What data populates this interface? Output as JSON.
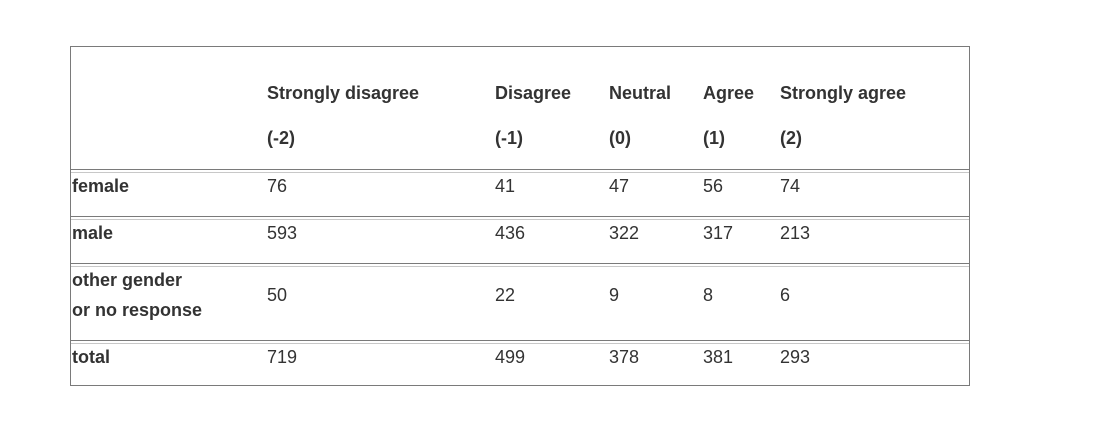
{
  "table": {
    "columns": [
      {
        "label": "Strongly disagree",
        "code": "(-2)"
      },
      {
        "label": "Disagree",
        "code": "(-1)"
      },
      {
        "label": "Neutral",
        "code": "(0)"
      },
      {
        "label": "Agree",
        "code": "(1)"
      },
      {
        "label": "Strongly agree",
        "code": "(2)"
      }
    ],
    "rows": [
      {
        "label": "female",
        "values": [
          "76",
          "41",
          "47",
          "56",
          "74"
        ]
      },
      {
        "label": "male",
        "values": [
          "593",
          "436",
          "322",
          "317",
          "213"
        ]
      },
      {
        "label_line1": "other gender",
        "label_line2": "or no response",
        "values": [
          "50",
          "22",
          "9",
          "8",
          "6"
        ]
      },
      {
        "label": "total",
        "values": [
          "719",
          "499",
          "378",
          "381",
          "293"
        ]
      }
    ]
  }
}
